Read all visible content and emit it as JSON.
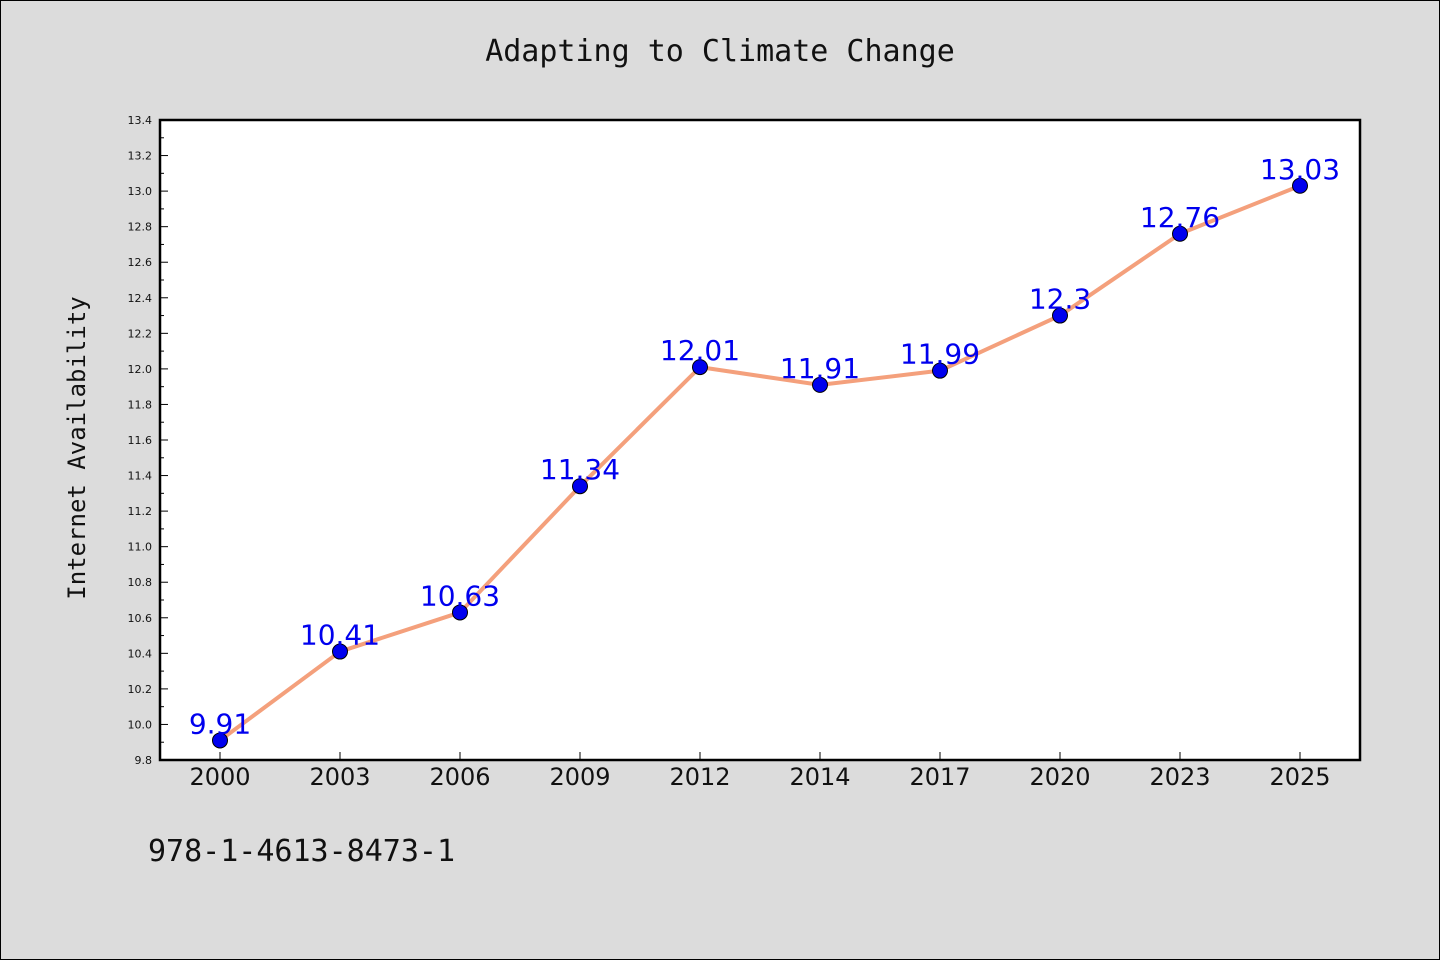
{
  "chart_data": {
    "type": "line",
    "title": "Adapting to Climate Change",
    "xlabel": "",
    "ylabel": "Internet Availability",
    "categories": [
      "2000",
      "2003",
      "2006",
      "2009",
      "2012",
      "2014",
      "2017",
      "2020",
      "2023",
      "2025"
    ],
    "series": [
      {
        "values": [
          9.91,
          10.41,
          10.63,
          11.34,
          12.01,
          11.91,
          11.99,
          12.3,
          12.76,
          13.03
        ],
        "labels": [
          "9.91",
          "10.41",
          "10.63",
          "11.34",
          "12.01",
          "11.91",
          "11.99",
          "12.3",
          "12.76",
          "13.03"
        ],
        "line_color": "#f4a07c",
        "marker_color": "#0000ee"
      }
    ],
    "ylim": [
      9.8,
      13.4
    ],
    "yticks": [
      "9.8",
      "10.0",
      "10.2",
      "10.4",
      "10.6",
      "10.8",
      "11.0",
      "11.2",
      "11.4",
      "11.6",
      "11.8",
      "12.0",
      "12.2",
      "12.4",
      "12.6",
      "12.8",
      "13.0",
      "13.2",
      "13.4"
    ],
    "grid": false,
    "label_color": "#0000ee"
  },
  "footer": {
    "isbn": "978-1-4613-8473-1"
  }
}
